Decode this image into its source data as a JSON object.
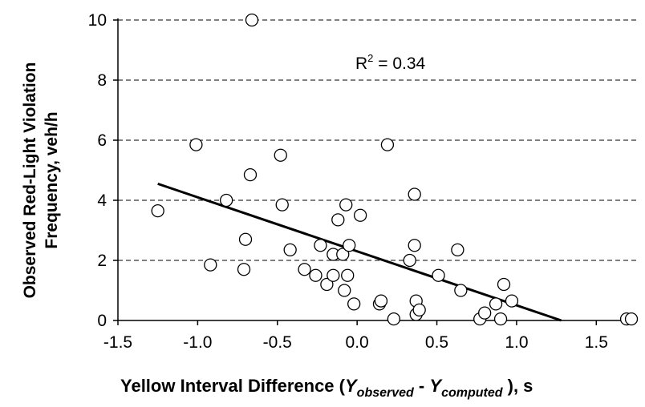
{
  "chart_data": {
    "type": "scatter",
    "title": "",
    "xlabel_parts": [
      "Yellow Interval Difference (",
      "Y",
      "observed",
      " - ",
      "Y",
      "computed",
      " ), s"
    ],
    "ylabel_lines": [
      "Observed Red-Light Violation",
      "Frequency, veh/h"
    ],
    "xlim": [
      -1.5,
      1.75
    ],
    "ylim": [
      0,
      10
    ],
    "x_ticks": [
      "-1.5",
      "-1.0",
      "-0.5",
      "0.0",
      "0.5",
      "1.0",
      "1.5"
    ],
    "y_ticks": [
      "0",
      "2",
      "4",
      "6",
      "8",
      "10"
    ],
    "grid": "horizontal-dashed",
    "annotation": {
      "base": "R",
      "sup": "2",
      "rest": " = 0.34"
    },
    "series": [
      {
        "marker": "open-circle",
        "points": [
          {
            "x": -1.25,
            "y": 3.65
          },
          {
            "x": -1.01,
            "y": 5.85
          },
          {
            "x": -0.92,
            "y": 1.85
          },
          {
            "x": -0.82,
            "y": 4.0
          },
          {
            "x": -0.7,
            "y": 2.7
          },
          {
            "x": -0.71,
            "y": 1.7
          },
          {
            "x": -0.66,
            "y": 10.0
          },
          {
            "x": -0.67,
            "y": 4.85
          },
          {
            "x": -0.48,
            "y": 5.5
          },
          {
            "x": -0.47,
            "y": 3.85
          },
          {
            "x": -0.42,
            "y": 2.35
          },
          {
            "x": -0.33,
            "y": 1.7
          },
          {
            "x": -0.26,
            "y": 1.5
          },
          {
            "x": -0.23,
            "y": 2.5
          },
          {
            "x": -0.19,
            "y": 1.2
          },
          {
            "x": -0.15,
            "y": 2.2
          },
          {
            "x": -0.15,
            "y": 1.5
          },
          {
            "x": -0.12,
            "y": 3.35
          },
          {
            "x": -0.09,
            "y": 2.2
          },
          {
            "x": -0.08,
            "y": 1.0
          },
          {
            "x": -0.07,
            "y": 3.85
          },
          {
            "x": -0.06,
            "y": 1.5
          },
          {
            "x": -0.05,
            "y": 2.5
          },
          {
            "x": -0.02,
            "y": 0.55
          },
          {
            "x": 0.02,
            "y": 3.5
          },
          {
            "x": 0.14,
            "y": 0.55
          },
          {
            "x": 0.15,
            "y": 0.65
          },
          {
            "x": 0.19,
            "y": 5.85
          },
          {
            "x": 0.23,
            "y": 0.05
          },
          {
            "x": 0.33,
            "y": 2.0
          },
          {
            "x": 0.36,
            "y": 2.5
          },
          {
            "x": 0.36,
            "y": 4.2
          },
          {
            "x": 0.37,
            "y": 0.65
          },
          {
            "x": 0.37,
            "y": 0.2
          },
          {
            "x": 0.39,
            "y": 0.35
          },
          {
            "x": 0.51,
            "y": 1.5
          },
          {
            "x": 0.63,
            "y": 2.35
          },
          {
            "x": 0.65,
            "y": 1.0
          },
          {
            "x": 0.77,
            "y": 0.05
          },
          {
            "x": 0.8,
            "y": 0.25
          },
          {
            "x": 0.87,
            "y": 0.55
          },
          {
            "x": 0.9,
            "y": 0.05
          },
          {
            "x": 0.92,
            "y": 1.2
          },
          {
            "x": 0.97,
            "y": 0.65
          },
          {
            "x": 1.69,
            "y": 0.05
          },
          {
            "x": 1.72,
            "y": 0.05
          }
        ]
      }
    ],
    "trendline": {
      "x": [
        -1.25,
        1.28
      ],
      "y": [
        4.55,
        0.0
      ]
    }
  }
}
